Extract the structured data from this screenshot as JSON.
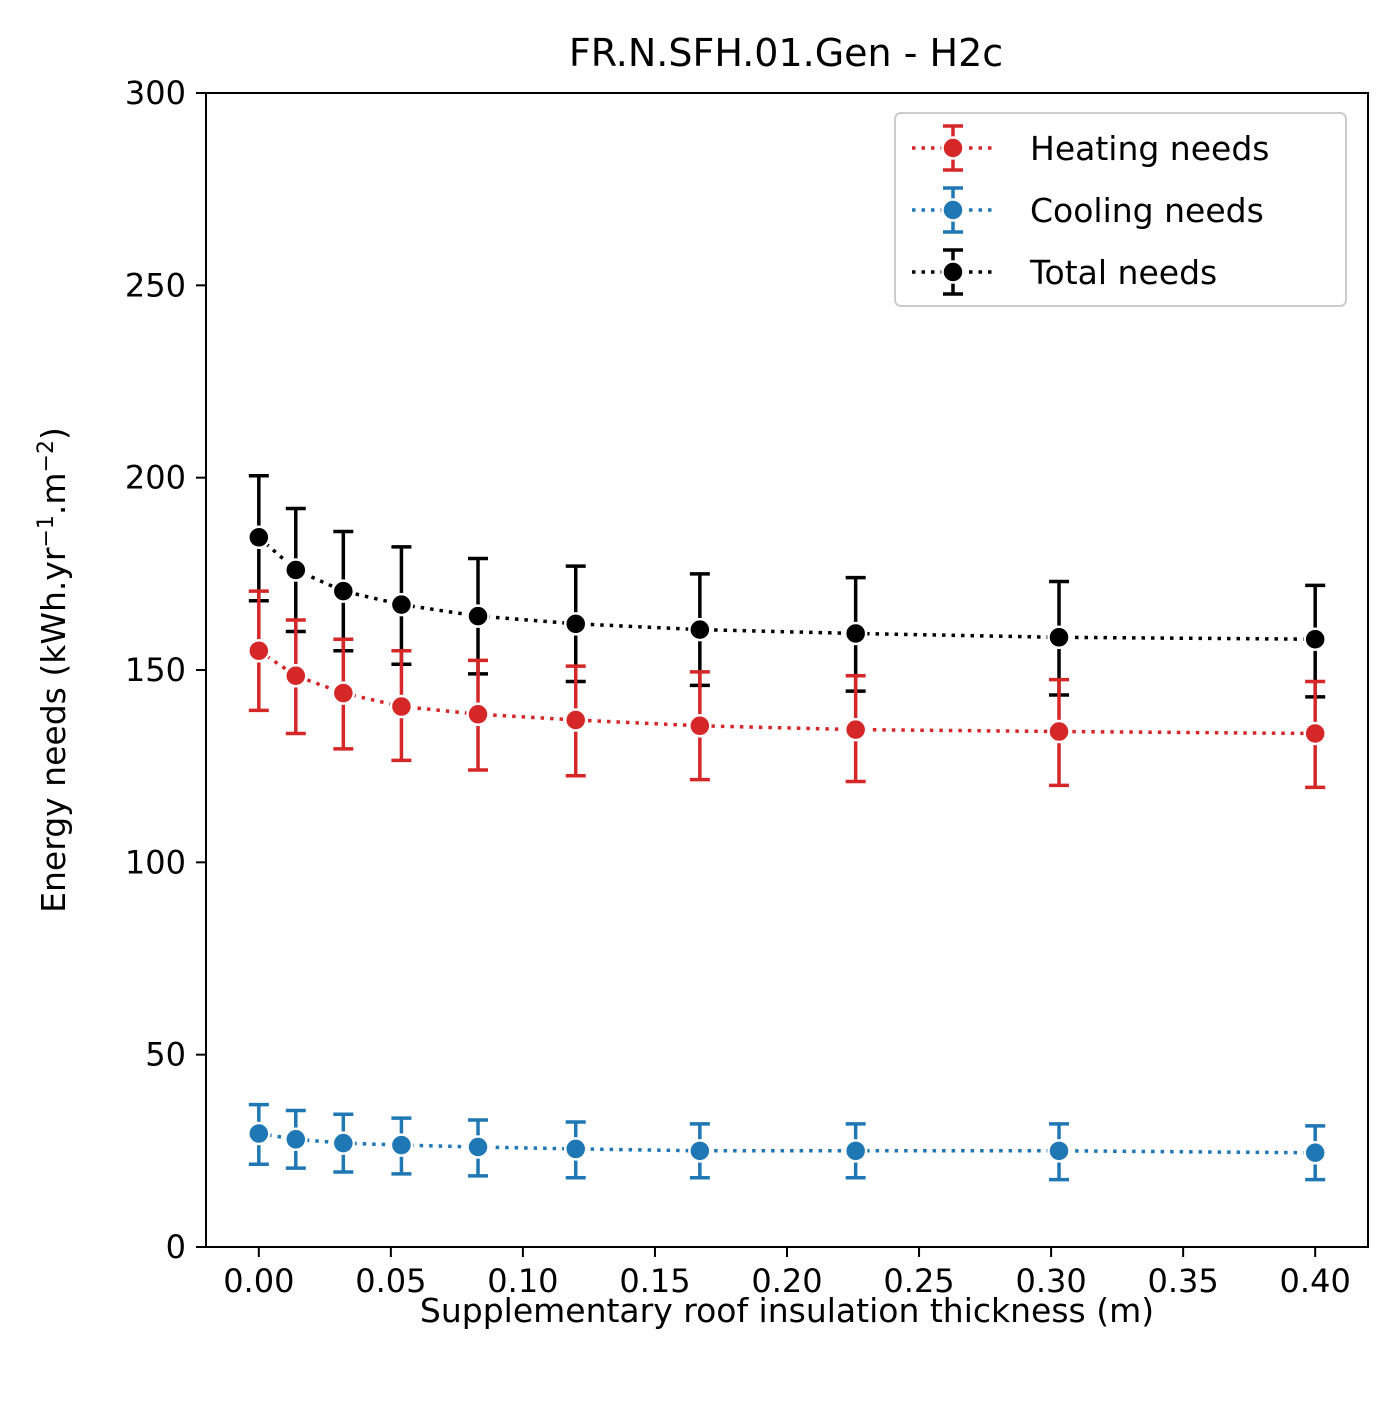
{
  "chart_data": {
    "type": "line",
    "title": "FR.N.SFH.01.Gen - H2c",
    "xlabel": "Supplementary roof insulation thickness (m)",
    "ylabel_main": "Energy needs (kWh.yr",
    "ylabel_sup1": "−1",
    "ylabel_mid": ".m",
    "ylabel_sup2": "−2",
    "ylabel_end": ")",
    "xlim": [
      -0.02,
      0.42
    ],
    "ylim": [
      0,
      300
    ],
    "x_ticks": [
      0.0,
      0.05,
      0.1,
      0.15,
      0.2,
      0.25,
      0.3,
      0.35,
      0.4
    ],
    "x_tick_labels": [
      "0.00",
      "0.05",
      "0.10",
      "0.15",
      "0.20",
      "0.25",
      "0.30",
      "0.35",
      "0.40"
    ],
    "y_ticks": [
      0,
      50,
      100,
      150,
      200,
      250,
      300
    ],
    "y_tick_labels": [
      "0",
      "50",
      "100",
      "150",
      "200",
      "250",
      "300"
    ],
    "grid": false,
    "legend_position": "top-right",
    "x": [
      0.0,
      0.014,
      0.032,
      0.054,
      0.083,
      0.12,
      0.167,
      0.226,
      0.303,
      0.4
    ],
    "series": [
      {
        "name": "Heating needs",
        "color": "#d62728",
        "line_style": "dotted",
        "marker": "circle",
        "values": [
          155,
          148.5,
          144,
          140.5,
          138.5,
          137,
          135.5,
          134.5,
          134,
          133.5
        ],
        "error_low": [
          139.5,
          133.5,
          129.5,
          126.5,
          124,
          122.5,
          121.5,
          121,
          120,
          119.5
        ],
        "error_high": [
          170.5,
          163,
          158,
          155,
          152.5,
          151,
          149.5,
          148.5,
          147.5,
          147
        ]
      },
      {
        "name": "Cooling needs",
        "color": "#1f77b4",
        "line_style": "dotted",
        "marker": "circle",
        "values": [
          29.5,
          28,
          27,
          26.5,
          26,
          25.5,
          25,
          25,
          25,
          24.5
        ],
        "error_low": [
          21.5,
          20.5,
          19.5,
          19,
          18.5,
          18,
          18,
          18,
          17.5,
          17.5
        ],
        "error_high": [
          37,
          35.5,
          34.5,
          33.5,
          33,
          32.5,
          32,
          32,
          32,
          31.5
        ]
      },
      {
        "name": "Total needs",
        "color": "#000000",
        "line_style": "dotted",
        "marker": "circle",
        "values": [
          184.5,
          176,
          170.5,
          167,
          164,
          162,
          160.5,
          159.5,
          158.5,
          158
        ],
        "error_low": [
          168,
          160,
          155,
          151.5,
          149,
          147,
          146,
          144.5,
          143.5,
          143
        ],
        "error_high": [
          200.5,
          192,
          186,
          182,
          179,
          177,
          175,
          174,
          173,
          172
        ]
      }
    ]
  }
}
